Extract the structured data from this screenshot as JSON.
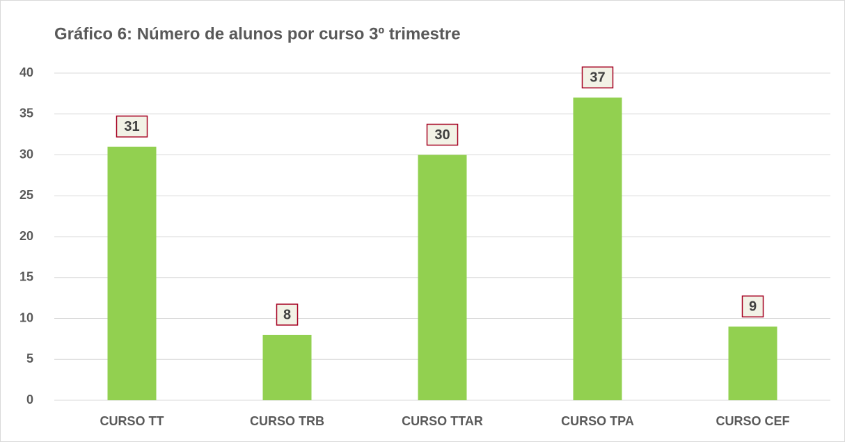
{
  "chart_data": {
    "type": "bar",
    "title": "Gráfico 6: Número de alunos por curso 3º trimestre",
    "categories": [
      "CURSO TT",
      "CURSO TRB",
      "CURSO TTAR",
      "CURSO TPA",
      "CURSO CEF"
    ],
    "values": [
      31,
      8,
      30,
      37,
      9
    ],
    "color": "#92d050",
    "ylim": [
      0,
      40
    ],
    "yticks": [
      0,
      5,
      10,
      15,
      20,
      25,
      30,
      35,
      40
    ],
    "grid": true
  }
}
